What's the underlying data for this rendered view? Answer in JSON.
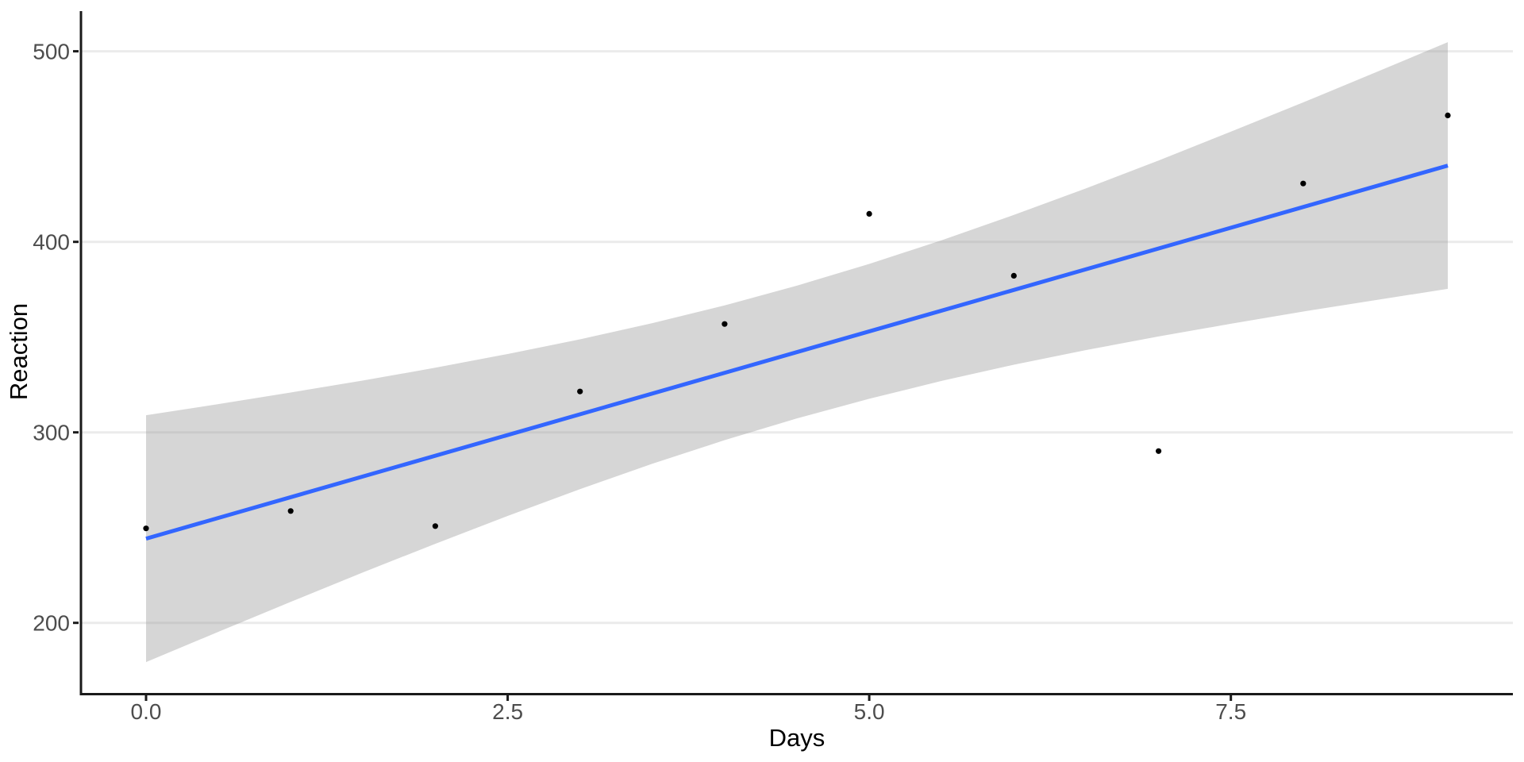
{
  "chart_data": {
    "type": "scatter",
    "title": "",
    "xlabel": "Days",
    "ylabel": "Reaction",
    "grid": "horizontal-major-only",
    "legend": "none",
    "xlim": [
      -0.45,
      9.45
    ],
    "ylim": [
      163.2,
      521.1
    ],
    "x_ticks": [
      {
        "value": 0,
        "label": "0.0"
      },
      {
        "value": 2.5,
        "label": "2.5"
      },
      {
        "value": 5,
        "label": "5.0"
      },
      {
        "value": 7.5,
        "label": "7.5"
      }
    ],
    "y_ticks": [
      {
        "value": 200,
        "label": "200"
      },
      {
        "value": 300,
        "label": "300"
      },
      {
        "value": 400,
        "label": "400"
      },
      {
        "value": 500,
        "label": "500"
      }
    ],
    "points": {
      "x": [
        0,
        1,
        2,
        3,
        4,
        5,
        6,
        7,
        8,
        9
      ],
      "y": [
        249.56,
        258.7,
        250.8,
        321.44,
        356.85,
        414.69,
        382.2,
        290.15,
        430.59,
        466.35
      ]
    },
    "regression_line": {
      "x_start": 0,
      "x_end": 9,
      "intercept": 244.19,
      "slope": 21.76
    },
    "confidence_band": {
      "x": [
        0,
        0.5,
        1,
        1.5,
        2,
        2.5,
        3,
        3.5,
        4,
        4.5,
        5,
        5.5,
        6,
        6.5,
        7,
        7.5,
        8,
        8.5,
        9
      ],
      "lower": [
        179.4,
        195.3,
        211.0,
        226.5,
        241.5,
        256.1,
        270.2,
        283.5,
        295.9,
        307.3,
        317.6,
        327.0,
        335.5,
        343.2,
        350.3,
        357.0,
        363.4,
        369.4,
        375.3
      ],
      "upper": [
        309.0,
        314.8,
        320.9,
        327.2,
        333.9,
        341.1,
        348.8,
        357.3,
        366.6,
        377.0,
        388.4,
        400.8,
        414.1,
        428.1,
        442.7,
        457.8,
        473.2,
        488.9,
        504.8
      ]
    },
    "colors": {
      "regression_line": "#3366FF",
      "confidence_band": "rgba(153,153,153,0.4)",
      "points": "#000000",
      "gridlines": "#EBEBEB",
      "axis": "#1A1A1A",
      "tick_labels": "#4D4D4D",
      "axis_titles": "#000000",
      "background": "#FFFFFF"
    }
  }
}
